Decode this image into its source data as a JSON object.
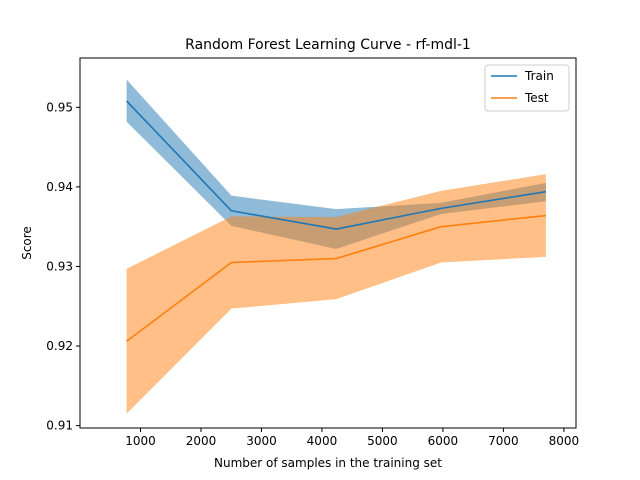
{
  "chart_data": {
    "type": "line",
    "title": "Random Forest Learning Curve - rf-mdl-1",
    "xlabel": "Number of samples in the training set",
    "ylabel": "Score",
    "xlim": [
      0,
      8200
    ],
    "ylim": [
      0.9097,
      0.9562
    ],
    "xticks": [
      1000,
      2000,
      3000,
      4000,
      5000,
      6000,
      7000,
      8000
    ],
    "xtick_labels": [
      "1000",
      "2000",
      "3000",
      "4000",
      "5000",
      "6000",
      "7000",
      "8000"
    ],
    "yticks": [
      0.91,
      0.92,
      0.93,
      0.94,
      0.95
    ],
    "ytick_labels": [
      "0.91",
      "0.92",
      "0.93",
      "0.94",
      "0.95"
    ],
    "grid": false,
    "legend": "top-right",
    "x": [
      770,
      2503,
      4236,
      5969,
      7702
    ],
    "series": [
      {
        "name": "Train",
        "color": "#1f77b4",
        "values": [
          0.9508,
          0.937,
          0.9347,
          0.9373,
          0.9394
        ],
        "band_upper": [
          0.9535,
          0.9389,
          0.9372,
          0.938,
          0.9405
        ],
        "band_lower": [
          0.9482,
          0.9351,
          0.9322,
          0.9366,
          0.9382
        ]
      },
      {
        "name": "Test",
        "color": "#ff7f0e",
        "values": [
          0.9206,
          0.9305,
          0.931,
          0.935,
          0.9364
        ],
        "band_upper": [
          0.9297,
          0.9363,
          0.9362,
          0.9395,
          0.9416
        ],
        "band_lower": [
          0.9115,
          0.9247,
          0.9259,
          0.9305,
          0.9312
        ]
      }
    ]
  }
}
